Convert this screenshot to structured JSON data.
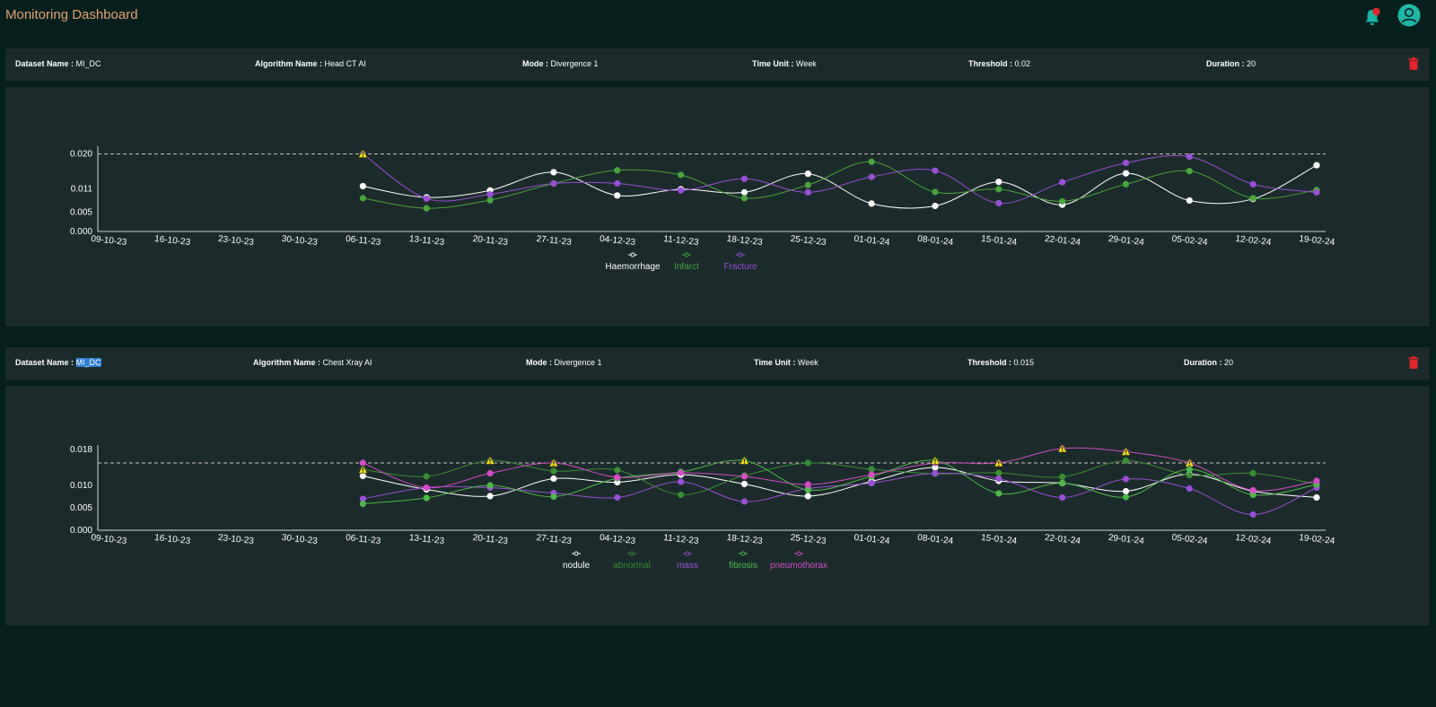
{
  "header": {
    "title": "Monitoring Dashboard",
    "bell_icon": "bell-icon",
    "user_icon": "user-avatar-icon"
  },
  "colors": {
    "accent_title": "#e9a26f",
    "panel": "#1b2b2b",
    "background": "#041f1c",
    "delete": "#e0262a"
  },
  "monitors": [
    {
      "info": {
        "dataset_label": "Dataset Name :",
        "dataset_value": "MI_DC",
        "algorithm_label": "Algorithm Name :",
        "algorithm_value": "Head CT AI",
        "mode_label": "Mode :",
        "mode_value": "Divergence 1",
        "time_label": "Time Unit :",
        "time_value": "Week",
        "threshold_label": "Threshold :",
        "threshold_value": "0.02",
        "duration_label": "Duration :",
        "duration_value": "20"
      },
      "chart_data": {
        "type": "line",
        "x": [
          "09-10-23",
          "16-10-23",
          "23-10-23",
          "30-10-23",
          "06-11-23",
          "13-11-23",
          "20-11-23",
          "27-11-23",
          "04-12-23",
          "11-12-23",
          "18-12-23",
          "25-12-23",
          "01-01-24",
          "08-01-24",
          "15-01-24",
          "22-01-24",
          "29-01-24",
          "05-02-24",
          "12-02-24",
          "19-02-24"
        ],
        "y_ticks": [
          0.0,
          0.005,
          0.011,
          0.02
        ],
        "y_tick_labels": [
          "0.000",
          "0.005",
          "0.011",
          "0.020"
        ],
        "ylim": [
          0,
          0.022
        ],
        "threshold": 0.02,
        "warnings": [
          {
            "series": "Fracture",
            "x": "06-11-23"
          }
        ],
        "series": [
          {
            "name": "Haemorrhage",
            "color": "#ffffff",
            "values": [
              null,
              null,
              null,
              null,
              0.0117,
              0.0088,
              0.0106,
              0.0153,
              0.0093,
              0.0109,
              0.0101,
              0.0149,
              0.0072,
              0.0066,
              0.0128,
              0.0069,
              0.015,
              0.008,
              0.0084,
              0.0171
            ]
          },
          {
            "name": "Infarct",
            "color": "#4aa53c",
            "values": [
              null,
              null,
              null,
              null,
              0.0086,
              0.006,
              0.0081,
              0.0124,
              0.0158,
              0.0146,
              0.0086,
              0.012,
              0.018,
              0.0102,
              0.0109,
              0.0078,
              0.0122,
              0.0156,
              0.0086,
              0.0107
            ]
          },
          {
            "name": "Fracture",
            "color": "#9a4fd6",
            "values": [
              null,
              null,
              null,
              null,
              0.02,
              0.0085,
              0.0096,
              0.0124,
              0.0124,
              0.0106,
              0.0136,
              0.0101,
              0.0141,
              0.0157,
              0.0073,
              0.0127,
              0.0177,
              0.0193,
              0.0122,
              0.0101
            ]
          }
        ]
      }
    },
    {
      "info": {
        "dataset_label": "Dataset Name :",
        "dataset_value": "MI_DC",
        "algorithm_label": "Algorithm Name :",
        "algorithm_value": "Chest Xray AI",
        "mode_label": "Mode :",
        "mode_value": "Divergence 1",
        "time_label": "Time Unit :",
        "time_value": "Week",
        "threshold_label": "Threshold :",
        "threshold_value": "0.015",
        "duration_label": "Duration :",
        "duration_value": "20"
      },
      "chart_data": {
        "type": "line",
        "x": [
          "09-10-23",
          "16-10-23",
          "23-10-23",
          "30-10-23",
          "06-11-23",
          "13-11-23",
          "20-11-23",
          "27-11-23",
          "04-12-23",
          "11-12-23",
          "18-12-23",
          "25-12-23",
          "01-01-24",
          "08-01-24",
          "15-01-24",
          "22-01-24",
          "29-01-24",
          "05-02-24",
          "12-02-24",
          "19-02-24"
        ],
        "y_ticks": [
          0.0,
          0.005,
          0.01,
          0.018
        ],
        "y_tick_labels": [
          "0.000",
          "0.005",
          "0.010",
          "0.018"
        ],
        "ylim": [
          0,
          0.019
        ],
        "threshold": 0.015,
        "warnings": [
          {
            "series": "abnormal",
            "x": "06-11-23"
          },
          {
            "series": "abnormal",
            "x": "20-11-23"
          },
          {
            "series": "pneumothorax",
            "x": "27-11-23"
          },
          {
            "series": "fibrosis",
            "x": "18-12-23"
          },
          {
            "series": "fibrosis",
            "x": "08-01-24"
          },
          {
            "series": "pneumothorax",
            "x": "15-01-24"
          },
          {
            "series": "pneumothorax",
            "x": "22-01-24"
          },
          {
            "series": "pneumothorax",
            "x": "29-01-24"
          },
          {
            "series": "pneumothorax",
            "x": "05-02-24"
          }
        ],
        "series": [
          {
            "name": "nodule",
            "color": "#ffffff",
            "values": [
              null,
              null,
              null,
              null,
              0.0121,
              0.0091,
              0.0076,
              0.0115,
              0.0107,
              0.0124,
              0.0103,
              0.0076,
              0.0109,
              0.014,
              0.011,
              0.0105,
              0.0087,
              0.0125,
              0.0087,
              0.0073
            ]
          },
          {
            "name": "abnormal",
            "color": "#3a8f33",
            "values": [
              null,
              null,
              null,
              null,
              0.0135,
              0.012,
              0.0155,
              0.0132,
              0.0134,
              0.0079,
              0.0122,
              0.015,
              0.0136,
              0.0126,
              0.0128,
              0.0119,
              0.0155,
              0.0123,
              0.0127,
              0.0103
            ]
          },
          {
            "name": "mass",
            "color": "#9a4fd6",
            "values": [
              null,
              null,
              null,
              null,
              0.007,
              0.0095,
              0.0095,
              0.0083,
              0.0073,
              0.0108,
              0.0064,
              0.0093,
              0.0105,
              0.0127,
              0.0115,
              0.0073,
              0.0114,
              0.0093,
              0.0035,
              0.0095
            ]
          },
          {
            "name": "fibrosis",
            "color": "#4fb84a",
            "values": [
              null,
              null,
              null,
              null,
              0.0059,
              0.0072,
              0.01,
              0.0075,
              0.0116,
              0.013,
              0.0155,
              0.009,
              0.012,
              0.0155,
              0.0082,
              0.0105,
              0.0074,
              0.0136,
              0.0079,
              0.0102
            ]
          },
          {
            "name": "pneumothorax",
            "color": "#d64bc7",
            "values": [
              null,
              null,
              null,
              null,
              0.015,
              0.0095,
              0.0127,
              0.015,
              0.0118,
              0.0128,
              0.012,
              0.0102,
              0.0124,
              0.015,
              0.015,
              0.0182,
              0.0175,
              0.015,
              0.0089,
              0.011
            ]
          }
        ]
      }
    }
  ]
}
